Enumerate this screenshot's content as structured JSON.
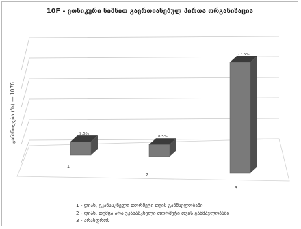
{
  "chart_data": {
    "type": "bar",
    "title": "10F - ეთნიკური ნიშნით გაერთიანებულ პირთა ორგანიზაცია",
    "ylabel": "განაწილება (%) — 1076",
    "categories": [
      "1",
      "2",
      "3"
    ],
    "values": [
      9.5,
      8.5,
      77.5
    ],
    "data_labels": [
      "9.5%",
      "8.5%",
      "77.5%"
    ],
    "ylim": [
      0,
      100
    ],
    "grid": true,
    "view": "3d",
    "legend_position": "bottom",
    "legend": [
      "1 - დიახ, უკანასკნელი თორმეტი თვის განმავლობაში",
      "2 - დიახ, თუმცა არა უკანასკნელი თორმეტი თვის განმავლობაში",
      "3 - არასდროს"
    ],
    "bar_colors": {
      "front": "#7a7a7a",
      "top": "#3a3a3a",
      "side": "#4e4e4e"
    }
  }
}
